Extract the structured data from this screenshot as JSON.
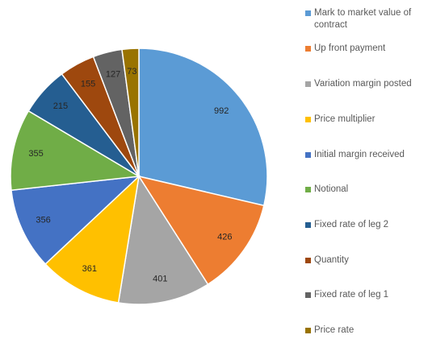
{
  "chart_data": {
    "type": "pie",
    "categories": [
      "Mark to market value of contract",
      "Up front payment",
      "Variation margin posted",
      "Price multiplier",
      "Initial margin received",
      "Notional",
      "Fixed rate of leg 2",
      "Quantity",
      "Fixed rate of leg 1",
      "Price rate"
    ],
    "values": [
      992,
      426,
      401,
      361,
      356,
      355,
      215,
      155,
      127,
      73
    ],
    "colors": [
      "#5b9bd5",
      "#ed7d31",
      "#a5a5a5",
      "#ffc000",
      "#4472c4",
      "#70ad47",
      "#255e91",
      "#9e480e",
      "#636363",
      "#997300"
    ],
    "legend": "right"
  }
}
